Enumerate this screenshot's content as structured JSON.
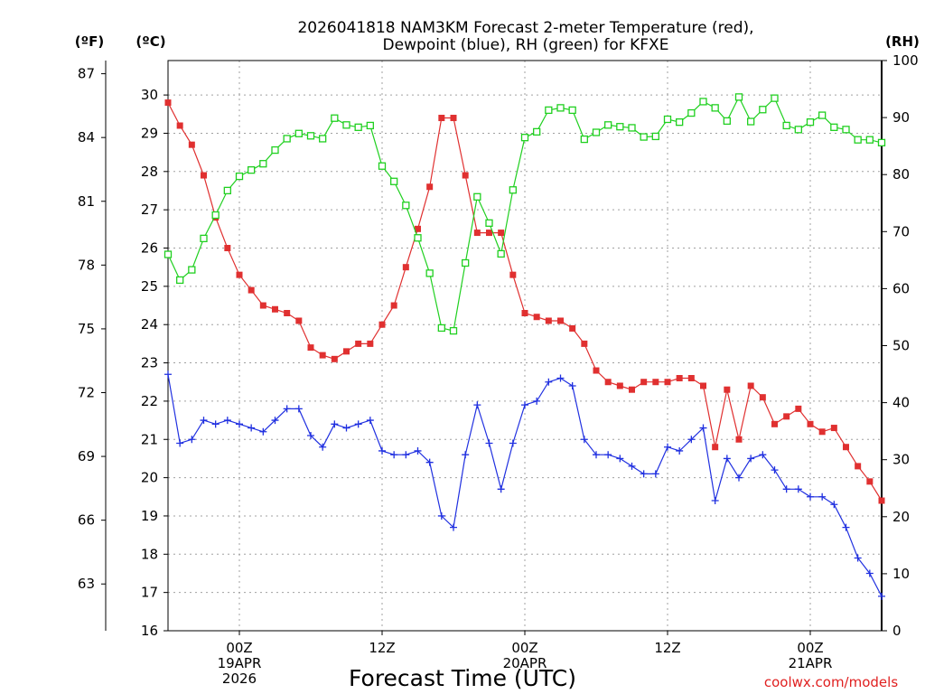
{
  "chart_data": {
    "type": "line",
    "title_line1": "2026041818 NAM3KM Forecast 2-meter Temperature (red),",
    "title_line2": "Dewpoint (blue), RH (green) for KFXE",
    "xlabel": "Forecast Time (UTC)",
    "credit": "coolwx.com/models",
    "units": {
      "fahrenheit": "(ºF)",
      "celsius": "(ºC)",
      "rh": "(RH)"
    },
    "x_range_hours": [
      0,
      60
    ],
    "celsius_axis": {
      "range": [
        16,
        30.9
      ],
      "ticks": [
        16,
        17,
        18,
        19,
        20,
        21,
        22,
        23,
        24,
        25,
        26,
        27,
        28,
        29,
        30
      ]
    },
    "fahrenheit_axis": {
      "ticks": [
        63,
        66,
        69,
        72,
        75,
        78,
        81,
        84,
        87
      ]
    },
    "rh_axis": {
      "range": [
        0,
        100
      ],
      "ticks": [
        0,
        10,
        20,
        30,
        40,
        50,
        60,
        70,
        80,
        90,
        100
      ]
    },
    "x_ticks": [
      {
        "hour": 6,
        "lines": [
          "00Z",
          "19APR",
          "2026"
        ]
      },
      {
        "hour": 18,
        "lines": [
          "12Z"
        ]
      },
      {
        "hour": 30,
        "lines": [
          "00Z",
          "20APR"
        ]
      },
      {
        "hour": 42,
        "lines": [
          "12Z"
        ]
      },
      {
        "hour": 54,
        "lines": [
          "00Z",
          "21APR"
        ]
      }
    ],
    "grid": true,
    "series": [
      {
        "key": "temperature",
        "axis": "celsius",
        "color": "#e03030",
        "marker": "filled-square",
        "values": [
          29.8,
          29.2,
          28.7,
          27.9,
          26.8,
          26.0,
          25.3,
          24.9,
          24.5,
          24.4,
          24.3,
          24.1,
          23.4,
          23.2,
          23.1,
          23.3,
          23.5,
          23.5,
          24.0,
          24.5,
          25.5,
          26.5,
          27.6,
          29.4,
          29.4,
          27.9,
          26.4,
          26.4,
          26.4,
          25.3,
          24.3,
          24.2,
          24.1,
          24.1,
          23.9,
          23.5,
          22.8,
          22.5,
          22.4,
          22.3,
          22.5,
          22.5,
          22.5,
          22.6,
          22.6,
          22.4,
          20.8,
          22.3,
          21.0,
          22.4,
          22.1,
          21.4,
          21.6,
          21.8,
          21.4,
          21.2,
          21.3,
          20.8,
          20.3,
          19.9,
          19.4
        ]
      },
      {
        "key": "dewpoint",
        "axis": "celsius",
        "color": "#2030e0",
        "marker": "plus",
        "values": [
          22.7,
          20.9,
          21.0,
          21.5,
          21.4,
          21.5,
          21.4,
          21.3,
          21.2,
          21.5,
          21.8,
          21.8,
          21.1,
          20.8,
          21.4,
          21.3,
          21.4,
          21.5,
          20.7,
          20.6,
          20.6,
          20.7,
          20.4,
          19.0,
          18.7,
          20.6,
          21.9,
          20.9,
          19.7,
          20.9,
          21.9,
          22.0,
          22.5,
          22.6,
          22.4,
          21.0,
          20.6,
          20.6,
          20.5,
          20.3,
          20.1,
          20.1,
          20.8,
          20.7,
          21.0,
          21.3,
          19.4,
          20.5,
          20.0,
          20.5,
          20.6,
          20.2,
          19.7,
          19.7,
          19.5,
          19.5,
          19.3,
          18.7,
          17.9,
          17.5,
          16.9
        ]
      },
      {
        "key": "rh",
        "axis": "rh",
        "color": "#20d020",
        "marker": "open-square",
        "values": [
          66,
          61.5,
          63.3,
          68.8,
          72.9,
          77.2,
          79.7,
          80.8,
          81.9,
          84.3,
          86.3,
          87.2,
          86.8,
          86.3,
          89.9,
          88.7,
          88.3,
          88.6,
          81.5,
          78.8,
          74.6,
          68.9,
          62.7,
          53.1,
          52.6,
          64.5,
          76.1,
          71.5,
          66.1,
          77.3,
          86.5,
          87.5,
          91.3,
          91.7,
          91.3,
          86.2,
          87.4,
          88.7,
          88.4,
          88.2,
          86.6,
          86.7,
          89.7,
          89.2,
          90.8,
          92.8,
          91.7,
          89.4,
          93.6,
          89.3,
          91.4,
          93.4,
          88.6,
          87.9,
          89.2,
          90.4,
          88.3,
          87.9,
          86.1,
          86.1,
          85.6
        ]
      }
    ]
  }
}
